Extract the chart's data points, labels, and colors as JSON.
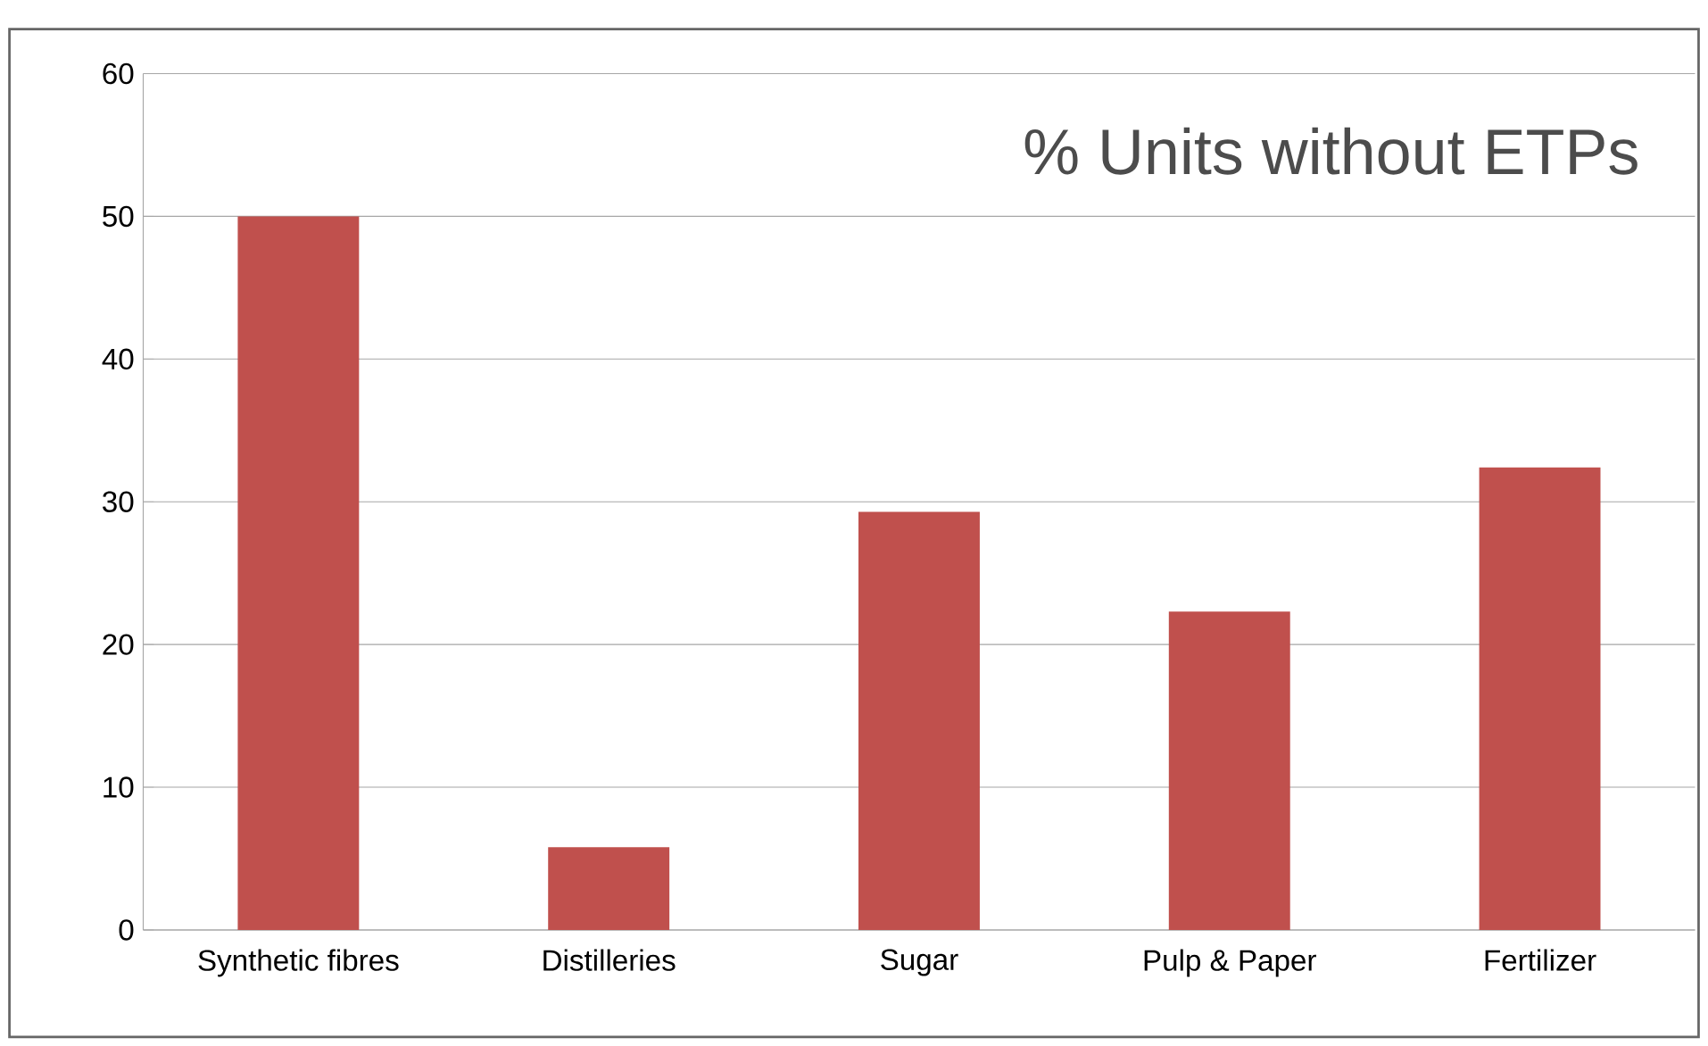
{
  "chart_data": {
    "type": "bar",
    "title": "% Units without ETPs",
    "categories": [
      "Synthetic fibres",
      "Distilleries",
      "Sugar",
      "Pulp & Paper",
      "Fertilizer"
    ],
    "values": [
      50,
      5.8,
      29.3,
      22.3,
      32.4
    ],
    "color": "#c0504d",
    "ylim": [
      0,
      60
    ],
    "yticks": [
      0,
      10,
      20,
      30,
      40,
      50,
      60
    ],
    "grid": "y"
  }
}
